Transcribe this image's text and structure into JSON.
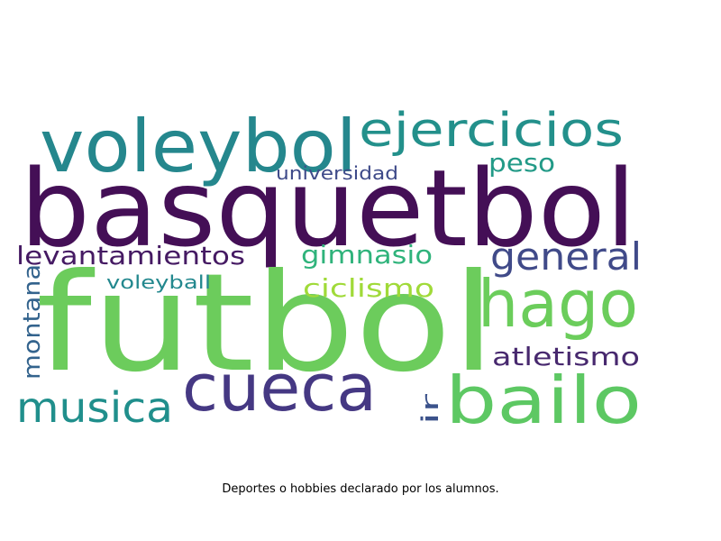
{
  "caption": "Deportes o hobbies declarado por los alumnos.",
  "words": [
    {
      "text": "basquetbol",
      "color": "#440f56"
    },
    {
      "text": "futbol",
      "color": "#6ccc5c"
    },
    {
      "text": "voleybol",
      "color": "#25878d"
    },
    {
      "text": "ejercicios",
      "color": "#23908b"
    },
    {
      "text": "hago",
      "color": "#6bcd5b"
    },
    {
      "text": "cueca",
      "color": "#453883"
    },
    {
      "text": "bailo",
      "color": "#5dc863"
    },
    {
      "text": "musica",
      "color": "#208f8c"
    },
    {
      "text": "general",
      "color": "#404a89"
    },
    {
      "text": "levantamientos",
      "color": "#451a63"
    },
    {
      "text": "gimnasio",
      "color": "#2fb37b"
    },
    {
      "text": "ciclismo",
      "color": "#a0da39"
    },
    {
      "text": "atletismo",
      "color": "#47286e"
    },
    {
      "text": "peso",
      "color": "#229a87"
    },
    {
      "text": "universidad",
      "color": "#3e4a89"
    },
    {
      "text": "voleyball",
      "color": "#23888e"
    },
    {
      "text": "montana",
      "color": "#33638d"
    },
    {
      "text": "ir",
      "color": "#3b528b"
    }
  ]
}
